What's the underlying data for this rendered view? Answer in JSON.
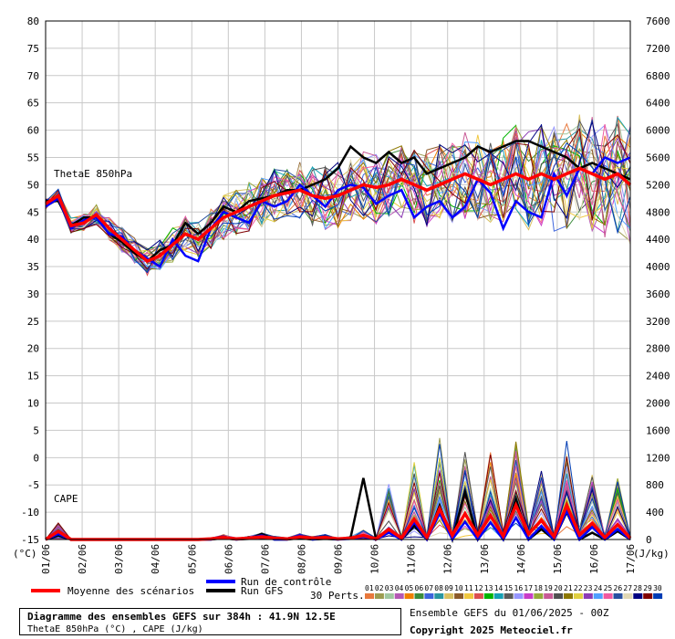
{
  "footer": {
    "title": "Diagramme des ensembles GEFS sur 384h : 41.9N 12.5E",
    "subtitle": "ThetaE 850hPa (°C) , CAPE (J/kg)",
    "run_info": "Ensemble GEFS du 01/06/2025 - 00Z",
    "copyright": "Copyright 2025 Meteociel.fr"
  },
  "colors": {
    "mean": "#ff0000",
    "control": "#0000ff",
    "gfs": "#000000",
    "grid": "#c8c8c8",
    "members": [
      "#e8783c",
      "#9c9c50",
      "#a0c8a0",
      "#b458b4",
      "#f08000",
      "#3c8c3c",
      "#3c64dc",
      "#2896a0",
      "#d8c060",
      "#8c5a28",
      "#f0c840",
      "#dc5050",
      "#00b400",
      "#14a0b4",
      "#5a5a5a",
      "#9696ff",
      "#c83cc8",
      "#96aa3c",
      "#c85a96",
      "#505050",
      "#8c7800",
      "#e0d040",
      "#8c3cb4",
      "#50a0ff",
      "#f05aa0",
      "#2850a0",
      "#e0d8b4",
      "#000080",
      "#800000",
      "#003cb4"
    ]
  },
  "chart_data": {
    "type": "line",
    "left_axis": {
      "ticks": [
        "80",
        "75",
        "70",
        "65",
        "60",
        "55",
        "50",
        "45",
        "40",
        "35",
        "30",
        "25",
        "20",
        "15",
        "10",
        "5",
        "0",
        "-5",
        "-10",
        "-15"
      ],
      "unit_label": "(°C)"
    },
    "right_axis": {
      "ticks": [
        "7600",
        "7200",
        "6800",
        "6400",
        "6000",
        "5600",
        "5200",
        "4800",
        "4400",
        "4000",
        "3600",
        "3200",
        "2800",
        "2400",
        "2000",
        "1600",
        "1200",
        "800",
        "400",
        "0"
      ],
      "unit_label": "(J/kg)"
    },
    "x_labels": [
      "01/06",
      "02/06",
      "03/06",
      "04/06",
      "05/06",
      "06/06",
      "07/06",
      "08/06",
      "09/06",
      "10/06",
      "11/06",
      "12/06",
      "13/06",
      "14/06",
      "15/06",
      "16/06",
      "17/06"
    ],
    "x_range_hours": [
      0,
      384
    ],
    "ylim_left": [
      -15,
      80
    ],
    "ylim_right": [
      0,
      7600
    ],
    "annotations": [
      "ThetaE 850hPa",
      "CAPE"
    ],
    "legend": {
      "mean": "Moyenne des scénarios",
      "control": "Run de contrôle",
      "gfs": "Run GFS",
      "perts": "30 Perts.",
      "member_ids": [
        "01",
        "02",
        "03",
        "04",
        "05",
        "06",
        "07",
        "08",
        "09",
        "10",
        "11",
        "12",
        "13",
        "14",
        "15",
        "16",
        "17",
        "18",
        "19",
        "20",
        "21",
        "22",
        "23",
        "24",
        "25",
        "26",
        "27",
        "28",
        "29",
        "30"
      ]
    },
    "series": [
      {
        "key": "mean",
        "name": "Moyenne des scénarios",
        "values": [
          46.5,
          48,
          42.5,
          43,
          44.5,
          42,
          40,
          38,
          36,
          37,
          39,
          41,
          40,
          42,
          44,
          45,
          46,
          47,
          48,
          48.5,
          49,
          48,
          47.5,
          48,
          49,
          50,
          49.5,
          50,
          51,
          50,
          49,
          50,
          51,
          52,
          51,
          50,
          51,
          52,
          51,
          52,
          51,
          52,
          53,
          52,
          51,
          52,
          50
        ],
        "cape": [
          0,
          120,
          0,
          0,
          0,
          0,
          0,
          0,
          0,
          0,
          0,
          0,
          0,
          10,
          30,
          10,
          20,
          40,
          20,
          10,
          40,
          20,
          30,
          10,
          20,
          60,
          10,
          150,
          20,
          300,
          30,
          450,
          60,
          380,
          60,
          350,
          50,
          500,
          80,
          280,
          40,
          500,
          70,
          240,
          30,
          220,
          20
        ]
      },
      {
        "key": "control",
        "name": "Run de contrôle",
        "values": [
          46,
          47.5,
          42,
          43.5,
          44,
          41,
          40.5,
          38,
          36.5,
          35,
          40,
          37,
          36,
          42,
          45,
          44,
          43,
          47,
          46,
          47,
          50,
          48,
          46,
          49,
          50,
          49.5,
          46.5,
          48,
          49,
          44,
          46,
          47,
          44,
          46,
          51,
          48.5,
          42,
          47,
          45,
          44,
          52,
          48,
          53,
          52,
          55,
          54,
          55
        ],
        "cape": [
          0,
          80,
          0,
          0,
          0,
          0,
          0,
          0,
          0,
          0,
          0,
          0,
          0,
          0,
          40,
          0,
          20,
          60,
          0,
          0,
          60,
          0,
          20,
          0,
          10,
          40,
          0,
          100,
          0,
          250,
          0,
          380,
          0,
          260,
          0,
          250,
          0,
          320,
          0,
          200,
          0,
          420,
          0,
          180,
          0,
          150,
          0
        ]
      },
      {
        "key": "gfs",
        "name": "Run GFS",
        "values": [
          47,
          47,
          42.5,
          44,
          44,
          41,
          39.5,
          37.5,
          36,
          38,
          39,
          43,
          41,
          43,
          46,
          45,
          47,
          47.5,
          48,
          49,
          49,
          50,
          51,
          53,
          57,
          55,
          54,
          56,
          54,
          55,
          52,
          53,
          54,
          55,
          57,
          56,
          57,
          58,
          58,
          57,
          56,
          55,
          53,
          54,
          53,
          52,
          51
        ],
        "cape": [
          0,
          60,
          0,
          0,
          0,
          0,
          0,
          0,
          0,
          0,
          0,
          0,
          0,
          0,
          20,
          0,
          10,
          80,
          0,
          0,
          20,
          0,
          10,
          0,
          30,
          900,
          0,
          120,
          0,
          200,
          0,
          500,
          0,
          700,
          0,
          250,
          0,
          600,
          0,
          150,
          0,
          400,
          0,
          100,
          0,
          120,
          0
        ]
      }
    ]
  }
}
